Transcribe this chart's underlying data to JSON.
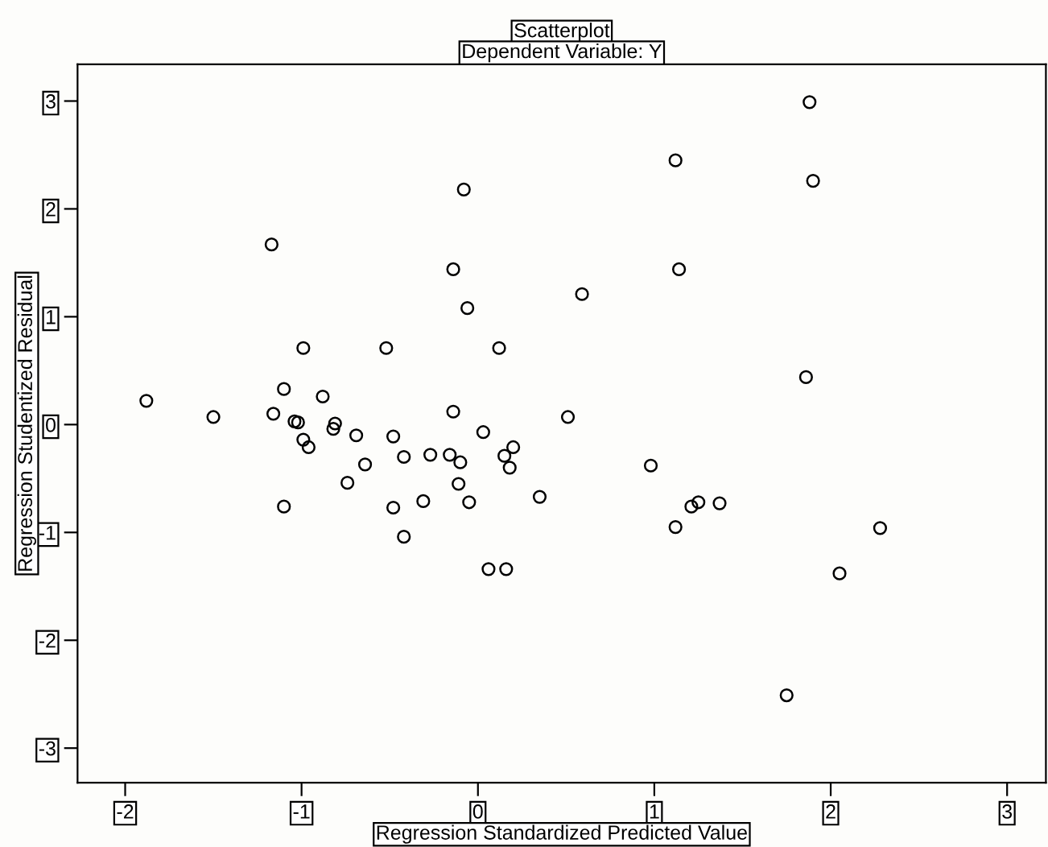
{
  "chart_data": {
    "type": "scatter",
    "title": "Scatterplot",
    "subtitle": "Dependent Variable: Y",
    "xlabel": "Regression Standardized Predicted Value",
    "ylabel": "Regression Studentized Residual",
    "x": [
      -1.88,
      -1.5,
      -1.17,
      -1.16,
      -1.1,
      -1.1,
      -0.99,
      -1.04,
      -1.02,
      -0.99,
      -0.96,
      -0.88,
      -0.82,
      -0.81,
      -0.69,
      -0.74,
      -0.64,
      -0.52,
      -0.48,
      -0.48,
      -0.42,
      -0.42,
      -0.31,
      -0.27,
      -0.16,
      -0.14,
      -0.14,
      -0.1,
      -0.11,
      -0.08,
      -0.06,
      -0.05,
      0.03,
      0.06,
      0.12,
      0.15,
      0.16,
      0.18,
      0.2,
      0.35,
      0.51,
      0.59,
      0.98,
      1.12,
      1.12,
      1.14,
      1.21,
      1.25,
      1.37,
      1.75,
      1.86,
      1.88,
      1.9,
      2.05,
      2.28
    ],
    "values": [
      0.22,
      0.07,
      1.67,
      0.1,
      0.33,
      -0.76,
      0.71,
      0.03,
      0.02,
      -0.14,
      -0.21,
      0.26,
      -0.04,
      0.01,
      -0.1,
      -0.54,
      -0.37,
      0.71,
      -0.11,
      -0.77,
      -0.3,
      -1.04,
      -0.71,
      -0.28,
      -0.28,
      1.44,
      0.12,
      -0.35,
      -0.55,
      2.18,
      1.08,
      -0.72,
      -0.07,
      -1.34,
      0.71,
      -0.29,
      -1.34,
      -0.4,
      -0.21,
      -0.67,
      0.07,
      1.21,
      -0.38,
      2.45,
      -0.95,
      1.44,
      -0.76,
      -0.72,
      -0.73,
      -2.51,
      0.44,
      2.99,
      2.26,
      -1.38,
      -0.96
    ],
    "color": "#000000",
    "marker": "circle",
    "xlim": [
      -2.27,
      3.22
    ],
    "ylim": [
      -3.32,
      3.34
    ],
    "xticks": [
      -2,
      -1,
      0,
      1,
      2,
      3
    ],
    "yticks": [
      -3,
      -2,
      -1,
      0,
      1,
      2,
      3
    ],
    "grid": false,
    "legend": false
  }
}
